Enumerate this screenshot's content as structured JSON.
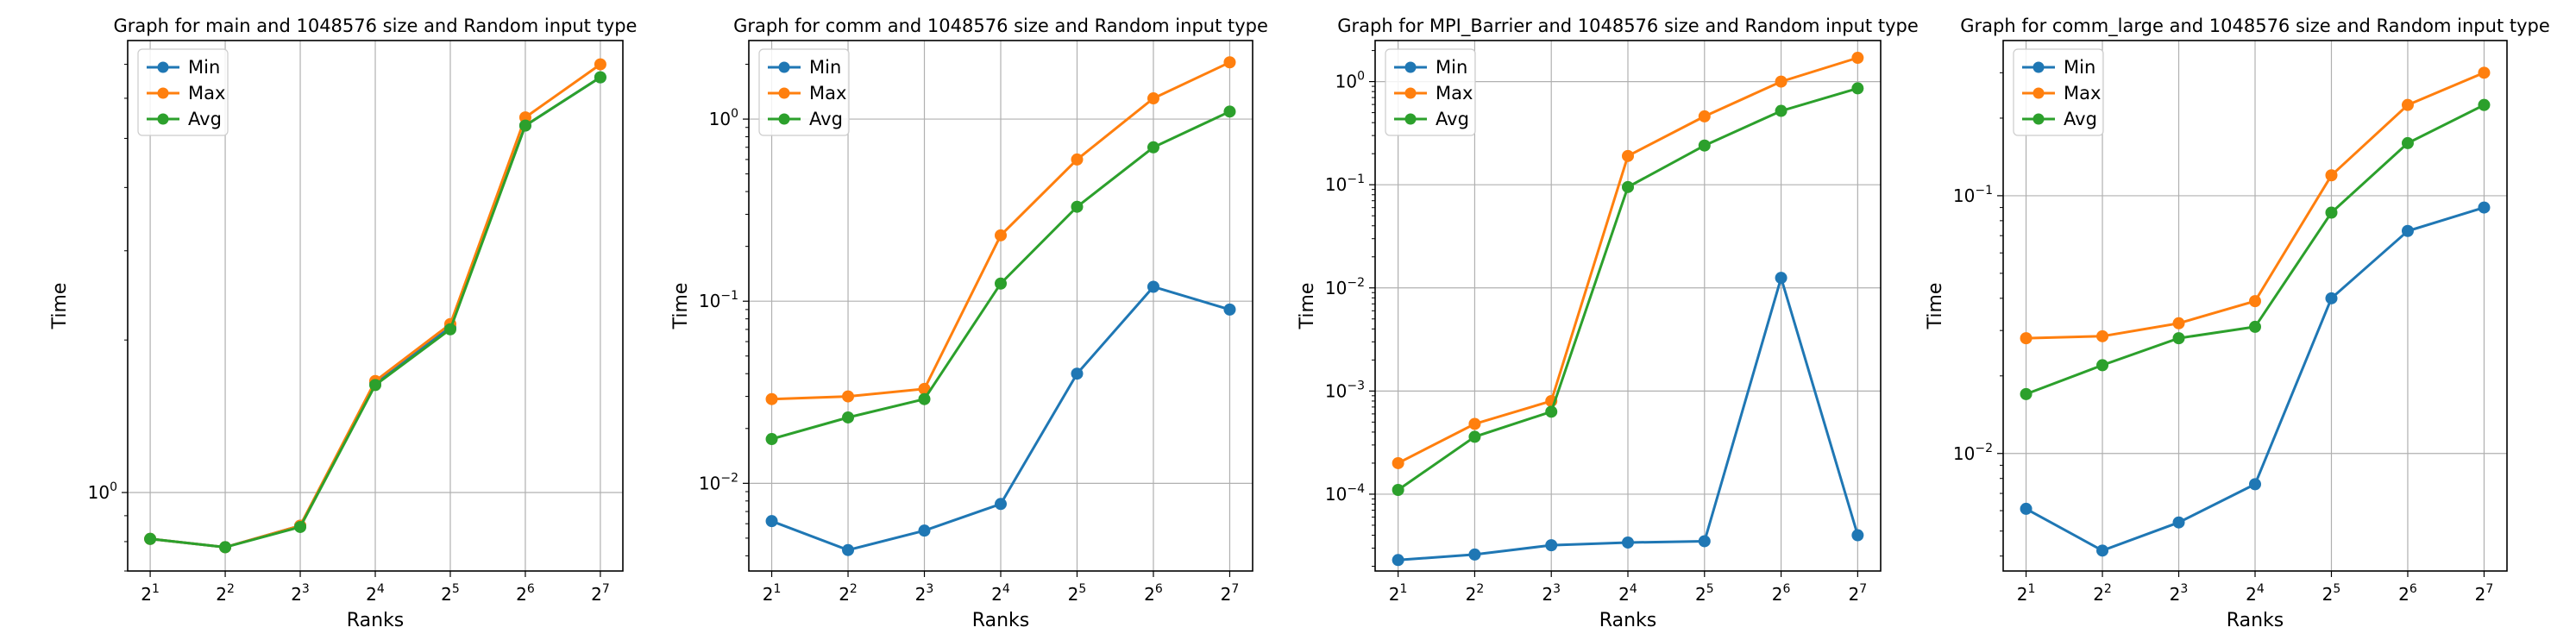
{
  "chart_data": [
    {
      "type": "line",
      "title": "Graph for main and 1048576 size and Random input type",
      "xlabel": "Ranks",
      "ylabel": "Time",
      "xscale": "log2",
      "yscale": "log",
      "x": [
        2,
        4,
        8,
        16,
        32,
        64,
        128
      ],
      "x_tick_labels": [
        {
          "base": "2",
          "exp": "1"
        },
        {
          "base": "2",
          "exp": "2"
        },
        {
          "base": "2",
          "exp": "3"
        },
        {
          "base": "2",
          "exp": "4"
        },
        {
          "base": "2",
          "exp": "5"
        },
        {
          "base": "2",
          "exp": "6"
        },
        {
          "base": "2",
          "exp": "7"
        }
      ],
      "ylim": [
        0.7,
        7.8
      ],
      "y_ticks": [
        {
          "value": 1,
          "base": "10",
          "exp": "0"
        }
      ],
      "grid": true,
      "legend": "upper-left",
      "series": [
        {
          "name": "Min",
          "color": "#1f77b4",
          "values": [
            0.81,
            0.78,
            0.86,
            1.65,
            2.12,
            5.3,
            6.6
          ]
        },
        {
          "name": "Max",
          "color": "#ff7f0e",
          "values": [
            0.81,
            0.78,
            0.86,
            1.66,
            2.15,
            5.5,
            7.0
          ]
        },
        {
          "name": "Avg",
          "color": "#2ca02c",
          "values": [
            0.81,
            0.78,
            0.855,
            1.63,
            2.1,
            5.3,
            6.6
          ]
        }
      ]
    },
    {
      "type": "line",
      "title": "Graph for comm and 1048576 size and Random input type",
      "xlabel": "Ranks",
      "ylabel": "Time",
      "xscale": "log2",
      "yscale": "log",
      "x": [
        2,
        4,
        8,
        16,
        32,
        64,
        128
      ],
      "x_tick_labels": [
        {
          "base": "2",
          "exp": "1"
        },
        {
          "base": "2",
          "exp": "2"
        },
        {
          "base": "2",
          "exp": "3"
        },
        {
          "base": "2",
          "exp": "4"
        },
        {
          "base": "2",
          "exp": "5"
        },
        {
          "base": "2",
          "exp": "6"
        },
        {
          "base": "2",
          "exp": "7"
        }
      ],
      "ylim": [
        0.0033,
        2.7
      ],
      "y_ticks": [
        {
          "value": 0.01,
          "base": "10",
          "exp": "−2"
        },
        {
          "value": 0.1,
          "base": "10",
          "exp": "−1"
        },
        {
          "value": 1,
          "base": "10",
          "exp": "0"
        }
      ],
      "grid": true,
      "legend": "upper-left",
      "series": [
        {
          "name": "Min",
          "color": "#1f77b4",
          "values": [
            0.0062,
            0.0043,
            0.0055,
            0.0077,
            0.04,
            0.12,
            0.09
          ]
        },
        {
          "name": "Max",
          "color": "#ff7f0e",
          "values": [
            0.029,
            0.03,
            0.033,
            0.23,
            0.6,
            1.3,
            2.05
          ]
        },
        {
          "name": "Avg",
          "color": "#2ca02c",
          "values": [
            0.0175,
            0.023,
            0.029,
            0.125,
            0.33,
            0.7,
            1.1
          ]
        }
      ]
    },
    {
      "type": "line",
      "title": "Graph for MPI_Barrier and 1048576 size and Random input type",
      "xlabel": "Ranks",
      "ylabel": "Time",
      "xscale": "log2",
      "yscale": "log",
      "x": [
        2,
        4,
        8,
        16,
        32,
        64,
        128
      ],
      "x_tick_labels": [
        {
          "base": "2",
          "exp": "1"
        },
        {
          "base": "2",
          "exp": "2"
        },
        {
          "base": "2",
          "exp": "3"
        },
        {
          "base": "2",
          "exp": "4"
        },
        {
          "base": "2",
          "exp": "5"
        },
        {
          "base": "2",
          "exp": "6"
        },
        {
          "base": "2",
          "exp": "7"
        }
      ],
      "ylim": [
        1.8e-05,
        2.5
      ],
      "y_ticks": [
        {
          "value": 0.0001,
          "base": "10",
          "exp": "−4"
        },
        {
          "value": 0.001,
          "base": "10",
          "exp": "−3"
        },
        {
          "value": 0.01,
          "base": "10",
          "exp": "−2"
        },
        {
          "value": 0.1,
          "base": "10",
          "exp": "−1"
        },
        {
          "value": 1,
          "base": "10",
          "exp": "0"
        }
      ],
      "grid": true,
      "legend": "upper-left",
      "series": [
        {
          "name": "Min",
          "color": "#1f77b4",
          "values": [
            2.3e-05,
            2.6e-05,
            3.2e-05,
            3.4e-05,
            3.5e-05,
            0.0125,
            4e-05
          ]
        },
        {
          "name": "Max",
          "color": "#ff7f0e",
          "values": [
            0.0002,
            0.00048,
            0.0008,
            0.19,
            0.46,
            1.0,
            1.7
          ]
        },
        {
          "name": "Avg",
          "color": "#2ca02c",
          "values": [
            0.00011,
            0.00036,
            0.00063,
            0.095,
            0.24,
            0.52,
            0.86
          ]
        }
      ]
    },
    {
      "type": "line",
      "title": "Graph for comm_large and 1048576 size and Random input type",
      "xlabel": "Ranks",
      "ylabel": "Time",
      "xscale": "log2",
      "yscale": "log",
      "x": [
        2,
        4,
        8,
        16,
        32,
        64,
        128
      ],
      "x_tick_labels": [
        {
          "base": "2",
          "exp": "1"
        },
        {
          "base": "2",
          "exp": "2"
        },
        {
          "base": "2",
          "exp": "3"
        },
        {
          "base": "2",
          "exp": "4"
        },
        {
          "base": "2",
          "exp": "5"
        },
        {
          "base": "2",
          "exp": "6"
        },
        {
          "base": "2",
          "exp": "7"
        }
      ],
      "ylim": [
        0.0035,
        0.4
      ],
      "y_ticks": [
        {
          "value": 0.01,
          "base": "10",
          "exp": "−2"
        },
        {
          "value": 0.1,
          "base": "10",
          "exp": "−1"
        }
      ],
      "grid": true,
      "legend": "upper-left",
      "series": [
        {
          "name": "Min",
          "color": "#1f77b4",
          "values": [
            0.0061,
            0.0042,
            0.0054,
            0.0076,
            0.04,
            0.073,
            0.09
          ]
        },
        {
          "name": "Max",
          "color": "#ff7f0e",
          "values": [
            0.028,
            0.0285,
            0.032,
            0.039,
            0.12,
            0.225,
            0.3
          ]
        },
        {
          "name": "Avg",
          "color": "#2ca02c",
          "values": [
            0.017,
            0.022,
            0.028,
            0.031,
            0.086,
            0.16,
            0.225
          ]
        }
      ]
    }
  ]
}
